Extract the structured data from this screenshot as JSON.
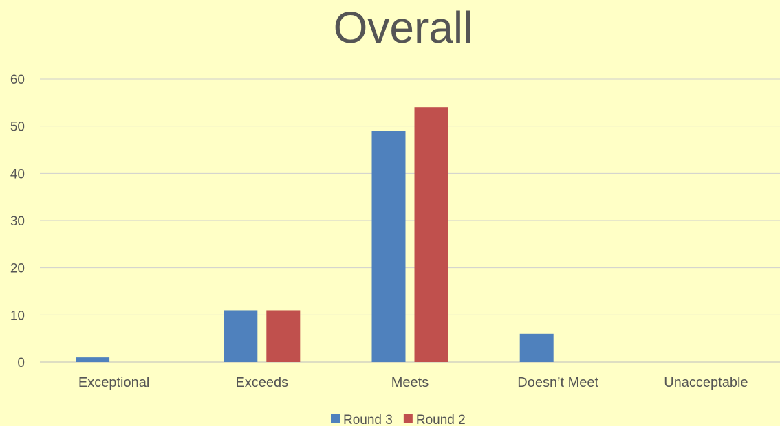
{
  "chart_data": {
    "type": "bar",
    "title": "Overall",
    "categories": [
      "Exceptional",
      "Exceeds",
      "Meets",
      "Doesn’t Meet",
      "Unacceptable"
    ],
    "series": [
      {
        "name": "Round 3",
        "color": "#4f81bd",
        "values": [
          1,
          11,
          49,
          6,
          0
        ]
      },
      {
        "name": "Round 2",
        "color": "#c0504d",
        "values": [
          0,
          11,
          54,
          0,
          0
        ]
      }
    ],
    "ylim": [
      0,
      60
    ],
    "yticks": [
      0,
      10,
      20,
      30,
      40,
      50,
      60
    ],
    "grid": true,
    "legend": "bottom"
  }
}
